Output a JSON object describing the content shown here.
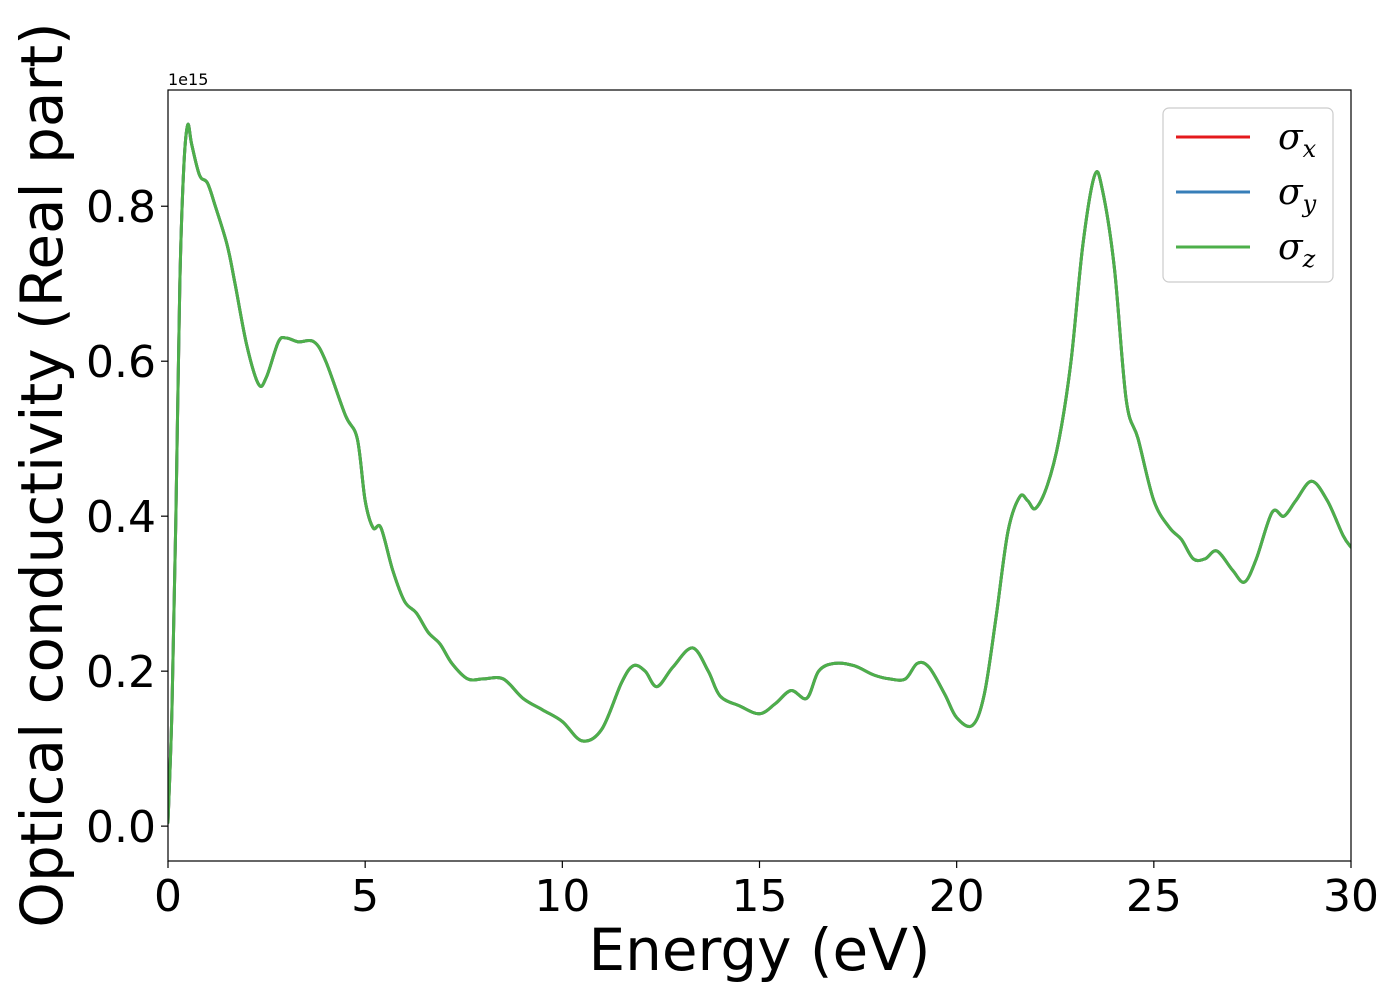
{
  "chart_data": {
    "type": "line",
    "title": "",
    "xlabel": "Energy (eV)",
    "ylabel": "Optical conductivity (Real part)",
    "y_offset_label": "1e15",
    "xlim": [
      0,
      30
    ],
    "ylim": [
      -0.045,
      0.95
    ],
    "xticks": [
      0,
      5,
      10,
      15,
      20,
      25,
      30
    ],
    "xtick_labels": [
      "0",
      "5",
      "10",
      "15",
      "20",
      "25",
      "30"
    ],
    "yticks": [
      0.0,
      0.2,
      0.4,
      0.6,
      0.8
    ],
    "ytick_labels": [
      "0.0",
      "0.2",
      "0.4",
      "0.6",
      "0.8"
    ],
    "grid": false,
    "legend_position": "top-right",
    "x": [
      0,
      0.1,
      0.2,
      0.3,
      0.4,
      0.5,
      0.6,
      0.8,
      1.0,
      1.2,
      1.5,
      1.7,
      2.0,
      2.3,
      2.5,
      2.8,
      3.0,
      3.3,
      3.7,
      4.0,
      4.5,
      4.8,
      5.0,
      5.2,
      5.4,
      5.7,
      6.0,
      6.3,
      6.6,
      6.9,
      7.2,
      7.6,
      8.0,
      8.5,
      9.0,
      9.5,
      10.0,
      10.5,
      11.0,
      11.5,
      11.8,
      12.1,
      12.4,
      12.8,
      13.3,
      13.7,
      14.0,
      14.5,
      15.0,
      15.4,
      15.8,
      16.2,
      16.5,
      16.9,
      17.4,
      17.9,
      18.3,
      18.7,
      19.0,
      19.3,
      19.7,
      20.0,
      20.4,
      20.7,
      21.0,
      21.3,
      21.6,
      21.8,
      22.0,
      22.3,
      22.6,
      22.9,
      23.2,
      23.5,
      23.7,
      24.0,
      24.3,
      24.6,
      25.0,
      25.4,
      25.7,
      26.0,
      26.3,
      26.6,
      27.0,
      27.3,
      27.6,
      28.0,
      28.3,
      28.6,
      29.0,
      29.4,
      29.8,
      30.0
    ],
    "series": [
      {
        "name": "σx",
        "color": "#e41a1c",
        "values": [
          0.005,
          0.15,
          0.4,
          0.7,
          0.85,
          0.905,
          0.88,
          0.84,
          0.83,
          0.8,
          0.75,
          0.7,
          0.62,
          0.57,
          0.58,
          0.625,
          0.63,
          0.625,
          0.625,
          0.6,
          0.53,
          0.5,
          0.42,
          0.385,
          0.385,
          0.33,
          0.29,
          0.275,
          0.25,
          0.235,
          0.21,
          0.19,
          0.19,
          0.19,
          0.165,
          0.15,
          0.135,
          0.11,
          0.125,
          0.185,
          0.207,
          0.2,
          0.18,
          0.205,
          0.23,
          0.2,
          0.168,
          0.155,
          0.145,
          0.158,
          0.175,
          0.165,
          0.2,
          0.21,
          0.207,
          0.195,
          0.19,
          0.19,
          0.21,
          0.205,
          0.17,
          0.14,
          0.13,
          0.17,
          0.27,
          0.38,
          0.425,
          0.42,
          0.41,
          0.44,
          0.5,
          0.6,
          0.75,
          0.84,
          0.82,
          0.72,
          0.55,
          0.5,
          0.42,
          0.385,
          0.37,
          0.345,
          0.345,
          0.355,
          0.33,
          0.315,
          0.345,
          0.405,
          0.4,
          0.42,
          0.445,
          0.42,
          0.375,
          0.36
        ]
      },
      {
        "name": "σy",
        "color": "#377eb8",
        "values": [
          0.005,
          0.15,
          0.4,
          0.7,
          0.85,
          0.905,
          0.88,
          0.84,
          0.83,
          0.8,
          0.75,
          0.7,
          0.62,
          0.57,
          0.58,
          0.625,
          0.63,
          0.625,
          0.625,
          0.6,
          0.53,
          0.5,
          0.42,
          0.385,
          0.385,
          0.33,
          0.29,
          0.275,
          0.25,
          0.235,
          0.21,
          0.19,
          0.19,
          0.19,
          0.165,
          0.15,
          0.135,
          0.11,
          0.125,
          0.185,
          0.207,
          0.2,
          0.18,
          0.205,
          0.23,
          0.2,
          0.168,
          0.155,
          0.145,
          0.158,
          0.175,
          0.165,
          0.2,
          0.21,
          0.207,
          0.195,
          0.19,
          0.19,
          0.21,
          0.205,
          0.17,
          0.14,
          0.13,
          0.17,
          0.27,
          0.38,
          0.425,
          0.42,
          0.41,
          0.44,
          0.5,
          0.6,
          0.75,
          0.84,
          0.82,
          0.72,
          0.55,
          0.5,
          0.42,
          0.385,
          0.37,
          0.345,
          0.345,
          0.355,
          0.33,
          0.315,
          0.345,
          0.405,
          0.4,
          0.42,
          0.445,
          0.42,
          0.375,
          0.36
        ]
      },
      {
        "name": "σz",
        "color": "#4daf4a",
        "values": [
          0.005,
          0.15,
          0.4,
          0.7,
          0.85,
          0.905,
          0.88,
          0.84,
          0.83,
          0.8,
          0.75,
          0.7,
          0.62,
          0.57,
          0.58,
          0.625,
          0.63,
          0.625,
          0.625,
          0.6,
          0.53,
          0.5,
          0.42,
          0.385,
          0.385,
          0.33,
          0.29,
          0.275,
          0.25,
          0.235,
          0.21,
          0.19,
          0.19,
          0.19,
          0.165,
          0.15,
          0.135,
          0.11,
          0.125,
          0.185,
          0.207,
          0.2,
          0.18,
          0.205,
          0.23,
          0.2,
          0.168,
          0.155,
          0.145,
          0.158,
          0.175,
          0.165,
          0.2,
          0.21,
          0.207,
          0.195,
          0.19,
          0.19,
          0.21,
          0.205,
          0.17,
          0.14,
          0.13,
          0.17,
          0.27,
          0.38,
          0.425,
          0.42,
          0.41,
          0.44,
          0.5,
          0.6,
          0.75,
          0.84,
          0.82,
          0.72,
          0.55,
          0.5,
          0.42,
          0.385,
          0.37,
          0.345,
          0.345,
          0.355,
          0.33,
          0.315,
          0.345,
          0.405,
          0.4,
          0.42,
          0.445,
          0.42,
          0.375,
          0.36
        ]
      }
    ],
    "legend": [
      {
        "symbol": "σ",
        "subscript": "x",
        "color": "#e41a1c"
      },
      {
        "symbol": "σ",
        "subscript": "y",
        "color": "#377eb8"
      },
      {
        "symbol": "σ",
        "subscript": "z",
        "color": "#4daf4a"
      }
    ]
  }
}
